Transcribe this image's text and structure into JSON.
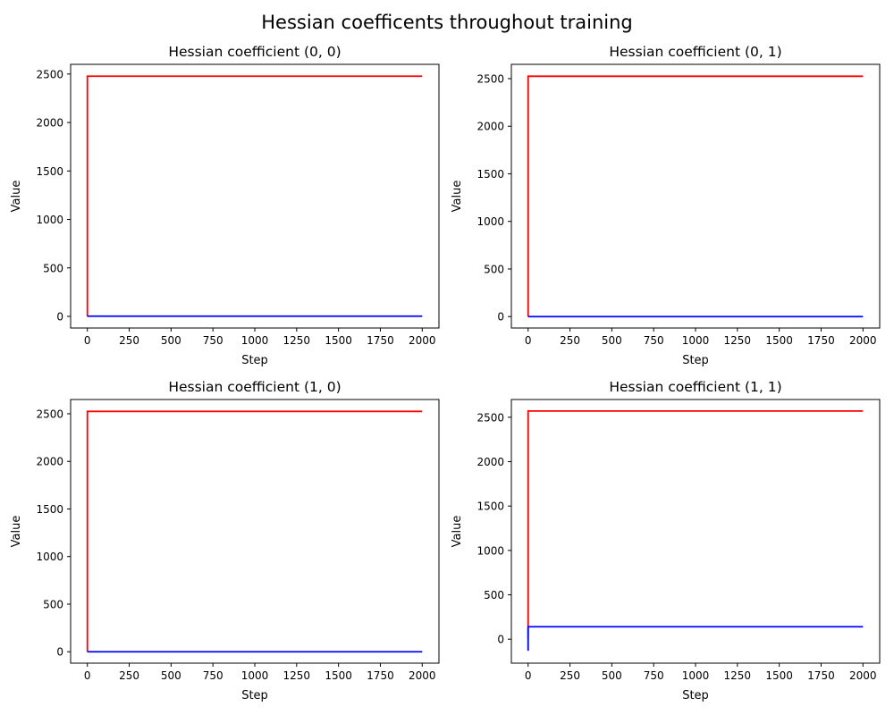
{
  "figure": {
    "suptitle": "Hessian coefficents throughout training"
  },
  "chart_data": [
    {
      "type": "line",
      "title": "Hessian coefficient (0, 0)",
      "xlabel": "Step",
      "ylabel": "Value",
      "xlim": [
        -100,
        2100
      ],
      "ylim": [
        -120,
        2600
      ],
      "xticks": [
        0,
        250,
        500,
        750,
        1000,
        1250,
        1500,
        1750,
        2000
      ],
      "yticks": [
        0,
        500,
        1000,
        1500,
        2000,
        2500
      ],
      "grid": false,
      "series": [
        {
          "color": "#ff0000",
          "x": [
            0,
            0,
            5,
            2000
          ],
          "y": [
            0,
            2478,
            2478,
            2478
          ]
        },
        {
          "color": "#0000ff",
          "x": [
            0,
            5,
            2000
          ],
          "y": [
            2,
            2,
            2
          ]
        }
      ]
    },
    {
      "type": "line",
      "title": "Hessian coefficient (0, 1)",
      "xlabel": "Step",
      "ylabel": "Value",
      "xlim": [
        -100,
        2100
      ],
      "ylim": [
        -120,
        2650
      ],
      "xticks": [
        0,
        250,
        500,
        750,
        1000,
        1250,
        1500,
        1750,
        2000
      ],
      "yticks": [
        0,
        500,
        1000,
        1500,
        2000,
        2500
      ],
      "grid": false,
      "series": [
        {
          "color": "#ff0000",
          "x": [
            0,
            0,
            5,
            2000
          ],
          "y": [
            0,
            2525,
            2525,
            2525
          ]
        },
        {
          "color": "#0000ff",
          "x": [
            0,
            5,
            2000
          ],
          "y": [
            0,
            0,
            0
          ]
        }
      ]
    },
    {
      "type": "line",
      "title": "Hessian coefficient (1, 0)",
      "xlabel": "Step",
      "ylabel": "Value",
      "xlim": [
        -100,
        2100
      ],
      "ylim": [
        -120,
        2650
      ],
      "xticks": [
        0,
        250,
        500,
        750,
        1000,
        1250,
        1500,
        1750,
        2000
      ],
      "yticks": [
        0,
        500,
        1000,
        1500,
        2000,
        2500
      ],
      "grid": false,
      "series": [
        {
          "color": "#ff0000",
          "x": [
            0,
            0,
            5,
            2000
          ],
          "y": [
            0,
            2525,
            2525,
            2525
          ]
        },
        {
          "color": "#0000ff",
          "x": [
            0,
            5,
            2000
          ],
          "y": [
            0,
            0,
            0
          ]
        }
      ]
    },
    {
      "type": "line",
      "title": "Hessian coefficient (1, 1)",
      "xlabel": "Step",
      "ylabel": "Value",
      "xlim": [
        -100,
        2100
      ],
      "ylim": [
        -270,
        2700
      ],
      "xticks": [
        0,
        250,
        500,
        750,
        1000,
        1250,
        1500,
        1750,
        2000
      ],
      "yticks": [
        0,
        500,
        1000,
        1500,
        2000,
        2500
      ],
      "grid": false,
      "series": [
        {
          "color": "#ff0000",
          "x": [
            0,
            0,
            5,
            2000
          ],
          "y": [
            0,
            2570,
            2570,
            2570
          ]
        },
        {
          "color": "#0000ff",
          "x": [
            0,
            0,
            0,
            5,
            2000
          ],
          "y": [
            -130,
            140,
            140,
            140,
            140
          ]
        }
      ]
    }
  ]
}
